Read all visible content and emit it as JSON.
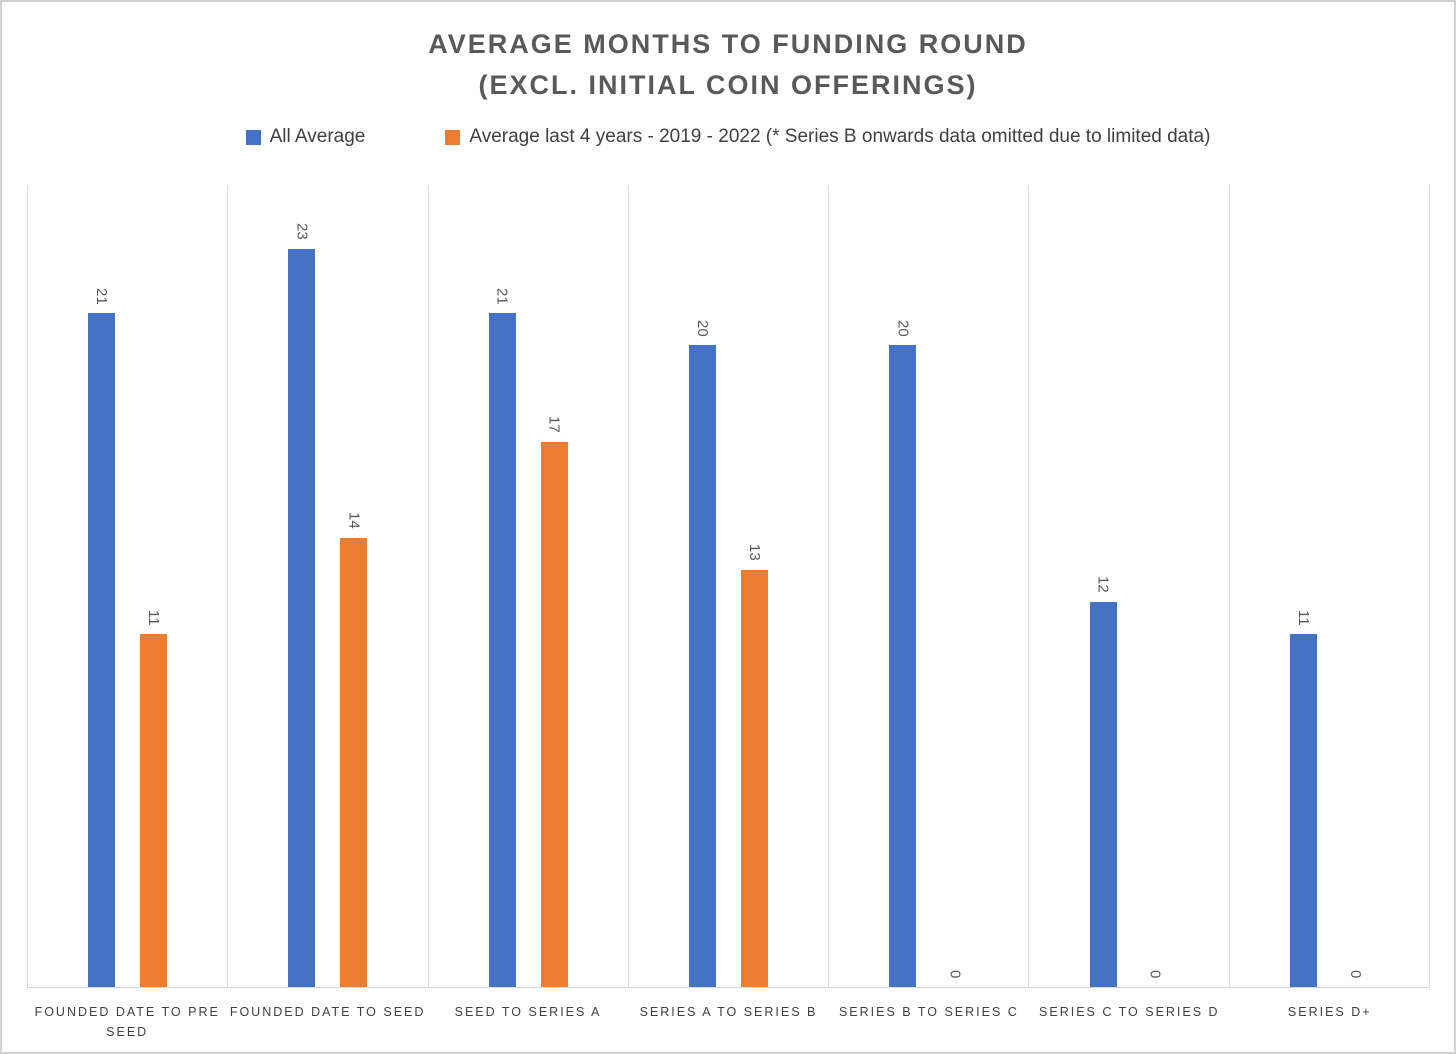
{
  "chart_data": {
    "type": "bar",
    "title_line1": "AVERAGE MONTHS TO FUNDING ROUND",
    "title_line2": "(EXCL. INITIAL COIN OFFERINGS)",
    "categories": [
      "FOUNDED DATE TO PRE SEED",
      "FOUNDED DATE TO SEED",
      "SEED TO SERIES A",
      "SERIES A TO SERIES B",
      "SERIES B TO SERIES C",
      "SERIES C TO SERIES D",
      "SERIES D+"
    ],
    "series": [
      {
        "name": "All Average",
        "color": "#4472C4",
        "values": [
          21,
          23,
          21,
          20,
          20,
          12,
          11
        ]
      },
      {
        "name": "Average last 4 years - 2019 - 2022 (* Series B onwards data omitted due to limited data)",
        "color": "#ED7D31",
        "values": [
          11,
          14,
          17,
          13,
          0,
          0,
          0
        ]
      }
    ],
    "ylabel": "",
    "xlabel": "",
    "ylim": [
      0,
      25
    ],
    "grid": "vertical-category-separators",
    "legend_position": "top",
    "data_labels": "rotated-90-above-bars",
    "colors": {
      "title_text": "#595959",
      "legend_text": "#404040",
      "axis_label_text": "#404040",
      "data_label_text": "#595959",
      "gridline": "#D9D9D9",
      "frame_border": "#D2D2D2"
    }
  }
}
